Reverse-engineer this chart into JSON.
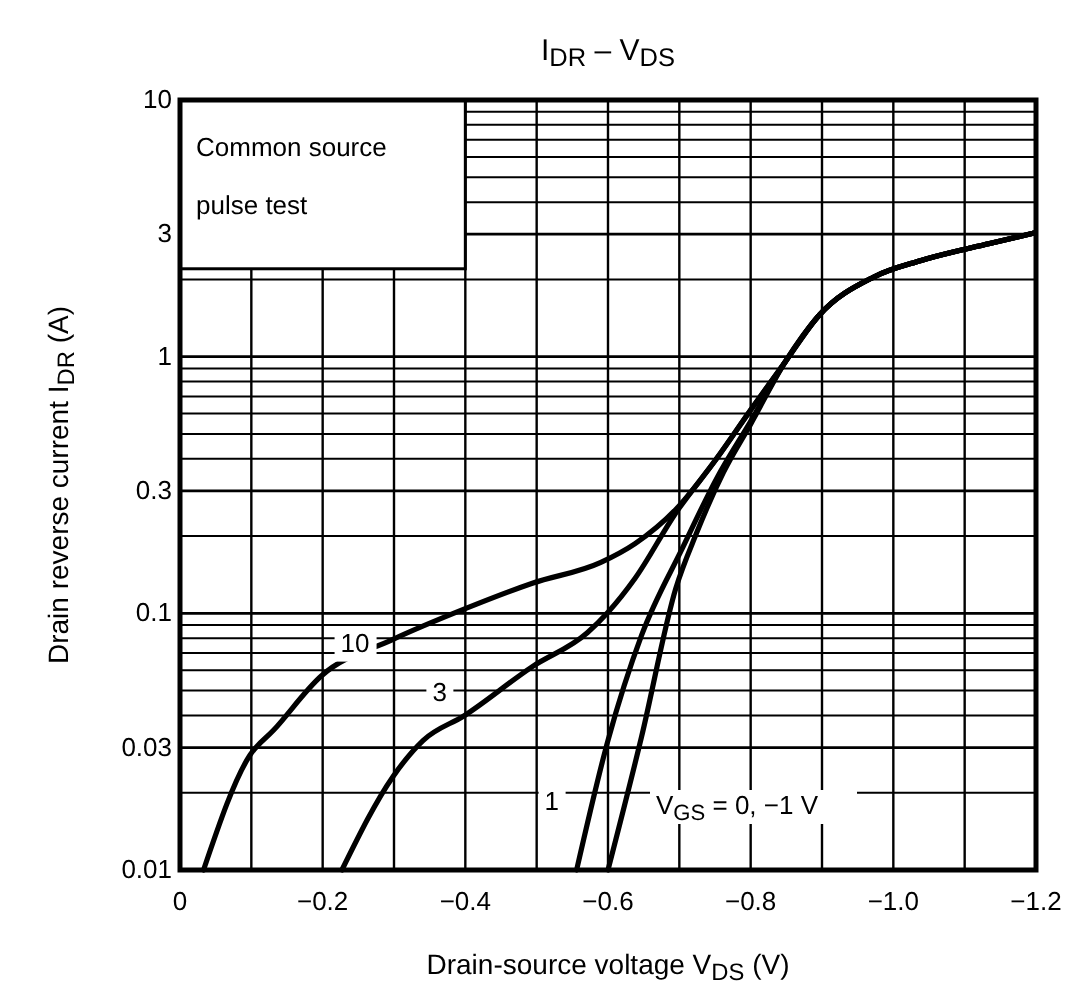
{
  "chart_data": {
    "type": "line",
    "title": "I$_{DR}$ – V$_{DS}$",
    "xlabel": "Drain-source voltage   V$_{DS}$   (V)",
    "ylabel": "Drain reverse current   I$_{DR}$   (A)",
    "annotations": [
      "Common source\npulse test"
    ],
    "log": "y",
    "grid": true,
    "marker": "none",
    "line_style": "solid",
    "xlim": [
      0,
      -1.2
    ],
    "xticks": [
      0,
      {
        "value": -0.2,
        "label": "−0.2"
      },
      {
        "value": -0.4,
        "label": "−0.4"
      },
      {
        "value": -0.6,
        "label": "−0.6"
      },
      {
        "value": -0.8,
        "label": "−0.8"
      },
      {
        "value": -1.0,
        "label": "−1.0"
      },
      {
        "value": -1.2,
        "label": "−1.2"
      }
    ],
    "ylim": [
      0.01,
      10
    ],
    "yticks": [
      0.01,
      {
        "value": 0.02,
        "label": null
      },
      0.03,
      {
        "value": 0.04,
        "label": null
      },
      {
        "value": 0.05,
        "label": null
      },
      {
        "value": 0.06,
        "label": null
      },
      {
        "value": 0.07,
        "label": null
      },
      {
        "value": 0.08,
        "label": null
      },
      {
        "value": 0.09,
        "label": null
      },
      0.1,
      {
        "value": 0.2,
        "label": null
      },
      0.3,
      {
        "value": 0.4,
        "label": null
      },
      {
        "value": 0.5,
        "label": null
      },
      {
        "value": 0.6,
        "label": null
      },
      {
        "value": 0.7,
        "label": null
      },
      {
        "value": 0.8,
        "label": null
      },
      {
        "value": 0.9,
        "label": null
      },
      1,
      {
        "value": 2,
        "label": null
      },
      3,
      {
        "value": 4,
        "label": null
      },
      {
        "value": 5,
        "label": null
      },
      {
        "value": 6,
        "label": null
      },
      {
        "value": 7,
        "label": null
      },
      {
        "value": 8,
        "label": null
      },
      {
        "value": 9,
        "label": null
      },
      10
    ],
    "series": [
      {
        "name": "10",
        "color": "#000000",
        "x": [
          -0.033,
          -0.098,
          -0.131,
          -0.198,
          -0.298,
          -0.399,
          -0.494,
          -0.59,
          -0.638,
          -0.695,
          -0.752,
          -0.8,
          -0.848,
          -0.896,
          -0.972,
          -1.039,
          -1.135,
          -1.197
        ],
        "values": [
          0.01,
          0.028,
          0.035,
          0.057,
          0.079,
          0.104,
          0.131,
          0.158,
          0.187,
          0.254,
          0.4,
          0.62,
          0.95,
          1.45,
          2.04,
          2.37,
          2.76,
          3.03
        ]
      },
      {
        "name": "3",
        "color": "#000000",
        "x": [
          -0.227,
          -0.298,
          -0.341,
          -0.399,
          -0.494,
          -0.571,
          -0.6,
          -0.638,
          -0.695,
          -0.752,
          -0.8,
          -0.848,
          -0.896,
          -0.972,
          -1.039,
          -1.135,
          -1.197
        ],
        "values": [
          0.01,
          0.023,
          0.032,
          0.04,
          0.062,
          0.084,
          0.101,
          0.137,
          0.246,
          0.4,
          0.62,
          0.95,
          1.45,
          2.04,
          2.37,
          2.76,
          3.03
        ]
      },
      {
        "name": "1",
        "color": "#000000",
        "x": [
          -0.556,
          -0.6,
          -0.647,
          -0.705,
          -0.752,
          -0.8,
          -0.848,
          -0.896,
          -0.972,
          -1.039,
          -1.135,
          -1.197
        ],
        "values": [
          0.01,
          0.032,
          0.082,
          0.181,
          0.334,
          0.56,
          0.95,
          1.45,
          2.04,
          2.37,
          2.76,
          3.03
        ]
      },
      {
        "name": "V$_{GS}$ = 0, −1 V",
        "color": "#000000",
        "x": [
          -0.6,
          -0.647,
          -0.695,
          -0.724,
          -0.762,
          -0.8,
          -0.848,
          -0.896,
          -0.972,
          -1.039,
          -1.135,
          -1.197
        ],
        "values": [
          0.01,
          0.033,
          0.125,
          0.205,
          0.355,
          0.546,
          0.95,
          1.45,
          2.04,
          2.37,
          2.76,
          3.03
        ]
      }
    ]
  }
}
